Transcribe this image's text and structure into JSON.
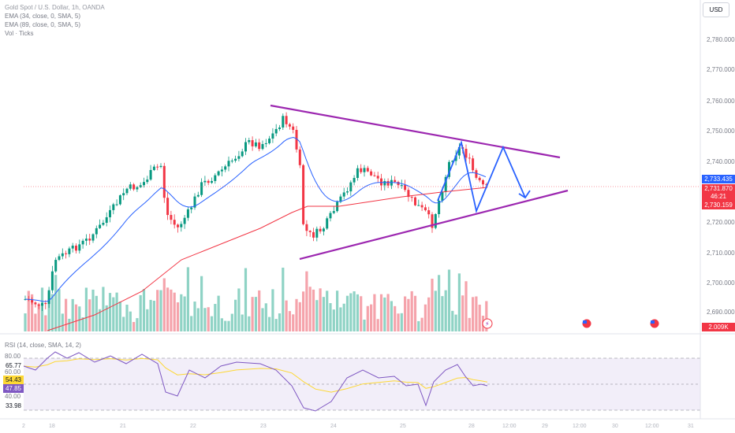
{
  "legend": {
    "title": "Gold Spot / U.S. Dollar, 1h, OANDA",
    "ema1": "EMA (34, close, 0, SMA, 5)",
    "ema2": "EMA (89, close, 0, SMA, 5)",
    "vol": "Vol · Ticks"
  },
  "currency_button": "USD",
  "price_axis": [
    "2,780.000",
    "2,770.000",
    "2,760.000",
    "2,750.000",
    "2,740.000",
    "2,720.000",
    "2,710.000",
    "2,700.000",
    "2,690.000"
  ],
  "price_tags": {
    "ema_value": "2,733.435",
    "last_price": "2,731.870",
    "countdown": "46:21",
    "ema2_value": "2,730.159",
    "volume": "2.009K"
  },
  "rsi": {
    "legend": "RSI (14, close, SMA, 14, 2)",
    "axis_top": "80.00",
    "tag_6577": "65.77",
    "axis_6000": "60.00",
    "tag_5443": "54.43",
    "tag_4785": "47.85",
    "axis_4000": "40.00",
    "tag_3398": "33.98"
  },
  "time_axis": [
    "2",
    "18",
    "21",
    "22",
    "23",
    "24",
    "25",
    "28",
    "12:00",
    "29",
    "12:00",
    "30",
    "12:00",
    "31"
  ],
  "colors": {
    "bull": "#089981",
    "bear": "#f23645",
    "ema_fast": "#2962ff",
    "ema_slow": "#f23645",
    "triangle": "#9c27b0",
    "projection": "#2962ff",
    "rsi": "#7e57c2",
    "rsi_ma": "#fdd835"
  },
  "chart_data": {
    "type": "candlestick",
    "title": "Gold Spot / U.S. Dollar, 1h, OANDA",
    "x": [
      "2",
      "18",
      "21",
      "22",
      "23",
      "24",
      "25",
      "28"
    ],
    "ylim": [
      2685,
      2785
    ],
    "pattern": "symmetrical triangle",
    "upper_trendline": [
      [
        2758.5,
        "23"
      ],
      [
        2741,
        "29 12:00"
      ]
    ],
    "lower_trendline": [
      [
        2709,
        "23"
      ],
      [
        2732,
        "29 12:00"
      ]
    ],
    "projection_path": [
      2747,
      2724,
      2746,
      2729
    ],
    "last_price": 2731.87
  }
}
